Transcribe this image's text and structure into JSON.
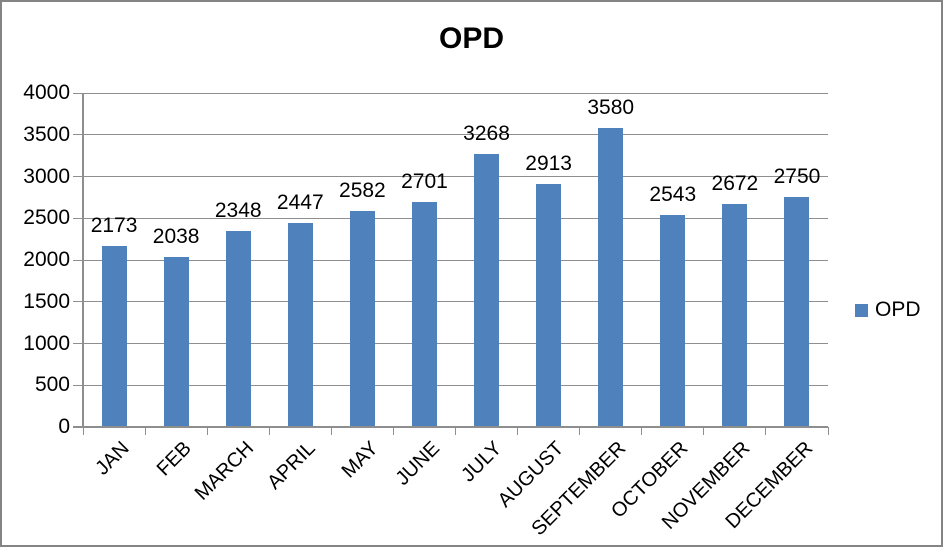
{
  "chart_data": {
    "type": "bar",
    "title": "OPD",
    "categories": [
      "JAN",
      "FEB",
      "MARCH",
      "APRIL",
      "MAY",
      "JUNE",
      "JULY",
      "AUGUST",
      "SEPTEMBER",
      "OCTOBER",
      "NOVEMBER",
      "DECEMBER"
    ],
    "series": [
      {
        "name": "OPD",
        "values": [
          2173,
          2038,
          2348,
          2447,
          2582,
          2701,
          3268,
          2913,
          3580,
          2543,
          2672,
          2750
        ]
      }
    ],
    "data_labels": [
      2173,
      2038,
      2348,
      2447,
      2582,
      2701,
      3268,
      2913,
      3580,
      2543,
      2672,
      2750
    ],
    "y_ticks": [
      0,
      500,
      1000,
      1500,
      2000,
      2500,
      3000,
      3500,
      4000
    ],
    "ylim": [
      0,
      4000
    ],
    "xlabel": "",
    "ylabel": "",
    "x_tick_rotation": -45,
    "grid": "horizontal",
    "legend": {
      "label": "OPD",
      "position": "right"
    },
    "colors": {
      "bar": "#4F81BD",
      "gridline": "#8E8E8E",
      "axis": "#8E8E8E",
      "text": "#000000",
      "frame_border": "#848484",
      "background": "#FFFFFF"
    }
  }
}
